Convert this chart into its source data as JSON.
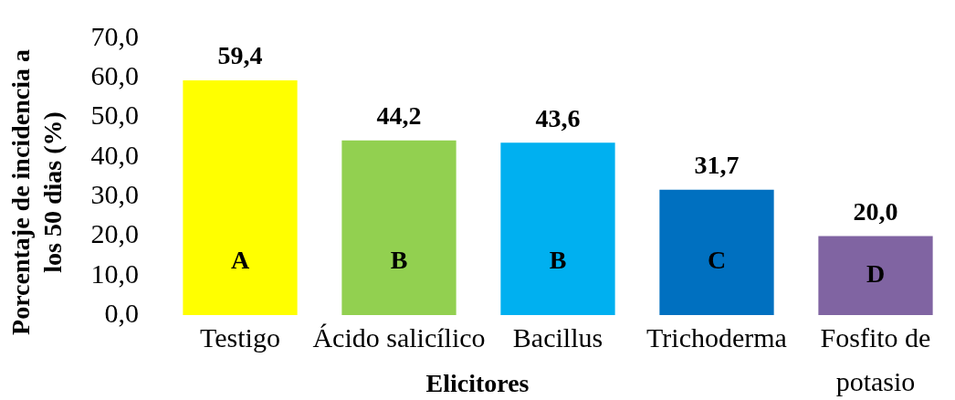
{
  "chart_data": {
    "type": "bar",
    "xlabel": "Elicitores",
    "ylabel": "Porcentaje de incidencia a los 50 dias (%)",
    "categories": [
      "Testigo",
      "Ácido salicílico",
      "Bacillus",
      "Trichoderma",
      "Fosfito de potasio"
    ],
    "values": [
      59.4,
      44.2,
      43.6,
      31.7,
      20.0
    ],
    "colors": [
      "#ffff00",
      "#92d050",
      "#00b0f0",
      "#0070c0",
      "#8064a2"
    ],
    "value_labels": [
      "59,4",
      "44,2",
      "43,6",
      "31,7",
      "20,0"
    ],
    "ylim": [
      0,
      70
    ],
    "yticks": [
      {
        "value": 0,
        "label": "0,0"
      },
      {
        "value": 10,
        "label": "10,0"
      },
      {
        "value": 20,
        "label": "20,0"
      },
      {
        "value": 30,
        "label": "30,0"
      },
      {
        "value": 40,
        "label": "40,0"
      },
      {
        "value": 50,
        "label": "50,0"
      },
      {
        "value": 60,
        "label": "60,0"
      },
      {
        "value": 70,
        "label": "70,0"
      }
    ],
    "grid": false,
    "legend": false,
    "annotations": [
      "A",
      "B",
      "B",
      "C",
      "D"
    ]
  }
}
